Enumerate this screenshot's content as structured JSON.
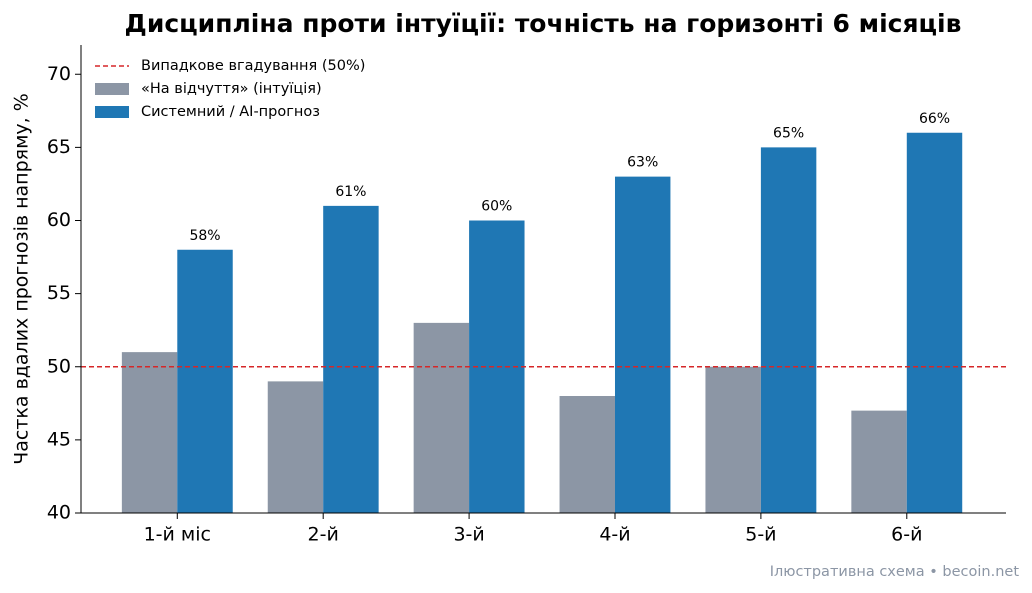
{
  "chart_data": {
    "type": "bar",
    "title": "Дисципліна проти інтуїції: точність на горизонті 6 місяців",
    "y_label": "Частка вдалих прогнозів напряму, %",
    "footer": "Ілюстративна схема • becoin.net",
    "categories": [
      "1-й міс",
      "2-й",
      "3-й",
      "4-й",
      "5-й",
      "6-й"
    ],
    "series": [
      {
        "name": "«На відчуття» (інтуїція)",
        "color": "#8c96a5",
        "values": [
          51,
          49,
          53,
          48,
          50,
          47
        ]
      },
      {
        "name": "Системний / AI-прогноз",
        "color": "#1f77b4",
        "values": [
          58,
          61,
          60,
          63,
          65,
          66
        ],
        "value_labels": [
          "58%",
          "61%",
          "60%",
          "63%",
          "65%",
          "66%"
        ]
      }
    ],
    "reference_line": {
      "value": 50,
      "label": "Випадкове вгадування (50%)",
      "color": "#d62728"
    },
    "ylim": [
      40,
      72
    ],
    "yticks": [
      40,
      45,
      50,
      55,
      60,
      65,
      70
    ],
    "legend": "upper left"
  }
}
